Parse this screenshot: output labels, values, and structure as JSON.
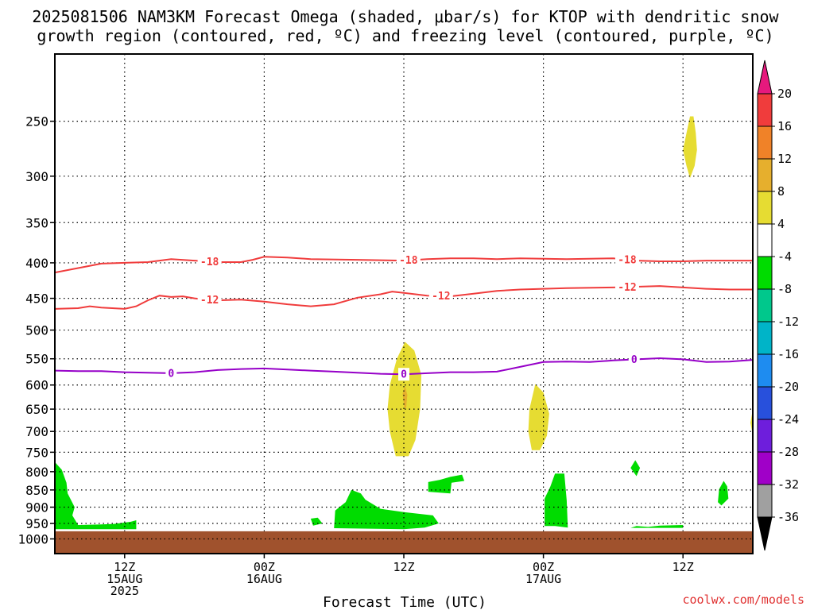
{
  "chart_data": {
    "type": "time-height cross section",
    "title_line1": "2025081506 NAM3KM Forecast Omega (shaded, μbar/s) for KTOP with dendritic snow",
    "title_line2": "growth region (contoured, red, ºC) and freezing level (contoured, purple, ºC)",
    "xlabel": "Forecast Time (UTC)",
    "credit": "coolwx.com/models",
    "y_axis": {
      "unit": "hPa",
      "scale": "log-pressure",
      "range": [
        1050,
        200
      ],
      "ticks": [
        250,
        300,
        350,
        400,
        450,
        500,
        550,
        600,
        650,
        700,
        750,
        800,
        850,
        900,
        950,
        1000
      ]
    },
    "x_axis": {
      "range_hours": [
        0,
        60
      ],
      "ticks": [
        {
          "hour": 6,
          "lines": [
            "12Z",
            "15AUG",
            "2025"
          ]
        },
        {
          "hour": 18,
          "lines": [
            "00Z",
            "16AUG"
          ]
        },
        {
          "hour": 30,
          "lines": [
            "12Z"
          ]
        },
        {
          "hour": 42,
          "lines": [
            "00Z",
            "17AUG"
          ]
        },
        {
          "hour": 54,
          "lines": [
            "12Z"
          ]
        }
      ]
    },
    "colorbar": {
      "labels": [
        "20",
        "16",
        "12",
        "8",
        "4",
        "-4",
        "-8",
        "-12",
        "-16",
        "-20",
        "-24",
        "-28",
        "-32",
        "-36"
      ],
      "levels": [
        20,
        16,
        12,
        8,
        4,
        -4,
        -8,
        -12,
        -16,
        -20,
        -24,
        -28,
        -32,
        -36
      ],
      "bands": [
        {
          "from": 20,
          "to": 16,
          "color": "#f03c3c"
        },
        {
          "from": 16,
          "to": 12,
          "color": "#f08228"
        },
        {
          "from": 12,
          "to": 8,
          "color": "#e6af2d"
        },
        {
          "from": 8,
          "to": 4,
          "color": "#e6dc32"
        },
        {
          "from": 4,
          "to": -4,
          "color": "#ffffff"
        },
        {
          "from": -4,
          "to": -8,
          "color": "#00dc00"
        },
        {
          "from": -8,
          "to": -12,
          "color": "#00c88c"
        },
        {
          "from": -12,
          "to": -16,
          "color": "#00b4c8"
        },
        {
          "from": -16,
          "to": -20,
          "color": "#1e8cf0"
        },
        {
          "from": -20,
          "to": -24,
          "color": "#2850dc"
        },
        {
          "from": -24,
          "to": -28,
          "color": "#6e1edc"
        },
        {
          "from": -28,
          "to": -32,
          "color": "#a000c8"
        },
        {
          "from": -32,
          "to": -36,
          "color": "#a0a0a0"
        }
      ],
      "over_color": "#e6197d",
      "under_color": "#000000"
    },
    "ground_color": "#a0522d",
    "ground_pressure": 975,
    "contours": [
      {
        "value": -18,
        "label": "-18",
        "color": "#f03c3c",
        "points": [
          [
            0,
            413
          ],
          [
            2,
            407
          ],
          [
            4,
            401
          ],
          [
            6,
            400
          ],
          [
            8,
            399
          ],
          [
            9,
            397
          ],
          [
            10,
            395
          ],
          [
            12,
            397
          ],
          [
            13,
            398
          ],
          [
            14,
            399
          ],
          [
            16,
            399
          ],
          [
            17,
            396
          ],
          [
            18,
            392
          ],
          [
            20,
            393
          ],
          [
            22,
            395
          ],
          [
            26,
            396
          ],
          [
            30,
            397
          ],
          [
            32,
            395
          ],
          [
            34,
            394
          ],
          [
            36,
            394
          ],
          [
            38,
            395
          ],
          [
            40,
            394
          ],
          [
            44,
            395
          ],
          [
            48,
            394
          ],
          [
            50,
            397
          ],
          [
            52,
            398
          ],
          [
            54,
            398
          ],
          [
            56,
            397
          ],
          [
            58,
            397
          ],
          [
            60,
            397
          ]
        ],
        "label_hours": [
          13.3,
          30.4,
          49.2
        ]
      },
      {
        "value": -12,
        "label": "-12",
        "color": "#f03c3c",
        "points": [
          [
            0,
            466
          ],
          [
            2,
            465
          ],
          [
            3,
            462
          ],
          [
            4,
            464
          ],
          [
            6,
            466
          ],
          [
            7,
            462
          ],
          [
            8,
            453
          ],
          [
            9,
            446
          ],
          [
            10,
            448
          ],
          [
            11,
            447
          ],
          [
            12,
            450
          ],
          [
            13,
            452
          ],
          [
            14,
            453
          ],
          [
            16,
            452
          ],
          [
            18,
            455
          ],
          [
            20,
            459
          ],
          [
            22,
            462
          ],
          [
            24,
            459
          ],
          [
            26,
            449
          ],
          [
            28,
            444
          ],
          [
            29,
            440
          ],
          [
            30,
            442
          ],
          [
            32,
            446
          ],
          [
            34,
            447
          ],
          [
            36,
            443
          ],
          [
            38,
            439
          ],
          [
            40,
            437
          ],
          [
            42,
            436
          ],
          [
            44,
            435
          ],
          [
            48,
            434
          ],
          [
            50,
            433
          ],
          [
            52,
            432
          ],
          [
            54,
            434
          ],
          [
            56,
            436
          ],
          [
            58,
            437
          ],
          [
            60,
            437
          ]
        ],
        "label_hours": [
          13.3,
          33.2,
          49.2
        ]
      },
      {
        "value": 0,
        "label": "0",
        "color": "#9600c8",
        "points": [
          [
            0,
            572
          ],
          [
            2,
            573
          ],
          [
            4,
            573
          ],
          [
            6,
            575
          ],
          [
            8,
            576
          ],
          [
            10,
            577
          ],
          [
            12,
            575
          ],
          [
            14,
            571
          ],
          [
            16,
            569
          ],
          [
            18,
            568
          ],
          [
            20,
            570
          ],
          [
            22,
            572
          ],
          [
            24,
            574
          ],
          [
            26,
            576
          ],
          [
            28,
            578
          ],
          [
            30,
            579
          ],
          [
            32,
            577
          ],
          [
            34,
            575
          ],
          [
            36,
            575
          ],
          [
            38,
            574
          ],
          [
            40,
            565
          ],
          [
            42,
            556
          ],
          [
            44,
            555
          ],
          [
            46,
            556
          ],
          [
            48,
            553
          ],
          [
            50,
            551
          ],
          [
            52,
            549
          ],
          [
            54,
            551
          ],
          [
            56,
            556
          ],
          [
            58,
            555
          ],
          [
            60,
            552
          ]
        ],
        "label_hours": [
          10.0,
          30.0,
          49.8
        ]
      }
    ],
    "shaded_regions": [
      {
        "category": "4 to 8",
        "color": "#e6dc32",
        "outline": [
          [
            54.6,
            246
          ],
          [
            54.3,
            260
          ],
          [
            54.0,
            275
          ],
          [
            54.3,
            290
          ],
          [
            54.6,
            302
          ],
          [
            55.0,
            290
          ],
          [
            55.2,
            275
          ],
          [
            55.1,
            260
          ],
          [
            54.9,
            246
          ]
        ]
      },
      {
        "category": "4 to 8",
        "color": "#e6dc32",
        "outline": [
          [
            29.3,
            760
          ],
          [
            28.8,
            700
          ],
          [
            28.6,
            650
          ],
          [
            28.8,
            600
          ],
          [
            29.4,
            550
          ],
          [
            30.1,
            520
          ],
          [
            30.9,
            535
          ],
          [
            31.5,
            580
          ],
          [
            31.4,
            650
          ],
          [
            31.0,
            720
          ],
          [
            30.4,
            760
          ]
        ]
      },
      {
        "category": "8 to 12",
        "color": "#e6af2d",
        "outline": [
          [
            30.05,
            648
          ],
          [
            29.9,
            618
          ],
          [
            30.1,
            602
          ],
          [
            30.3,
            620
          ],
          [
            30.2,
            648
          ]
        ]
      },
      {
        "category": "4 to 8",
        "color": "#e6dc32",
        "outline": [
          [
            41.0,
            745
          ],
          [
            40.7,
            700
          ],
          [
            40.8,
            650
          ],
          [
            41.3,
            598
          ],
          [
            42.0,
            615
          ],
          [
            42.5,
            660
          ],
          [
            42.3,
            710
          ],
          [
            41.7,
            745
          ]
        ]
      },
      {
        "category": "4 to 8",
        "color": "#e6dc32",
        "outline": [
          [
            60,
            650
          ],
          [
            59.8,
            680
          ],
          [
            60,
            710
          ]
        ]
      },
      {
        "category": "-4 to -8",
        "color": "#00dc00",
        "outline": [
          [
            0,
            775
          ],
          [
            0.6,
            795
          ],
          [
            1.0,
            830
          ],
          [
            1.1,
            860
          ],
          [
            1.7,
            900
          ],
          [
            1.5,
            925
          ],
          [
            2.0,
            955
          ],
          [
            5.0,
            952
          ],
          [
            6.5,
            945
          ],
          [
            7.0,
            940
          ],
          [
            7.0,
            968
          ],
          [
            0,
            968
          ]
        ]
      },
      {
        "category": "-4 to -8",
        "color": "#00dc00",
        "outline": [
          [
            22.0,
            935
          ],
          [
            22.6,
            932
          ],
          [
            23.0,
            950
          ],
          [
            22.2,
            957
          ]
        ]
      },
      {
        "category": "-4 to -8",
        "color": "#00dc00",
        "outline": [
          [
            24.0,
            965
          ],
          [
            24.1,
            910
          ],
          [
            25.0,
            885
          ],
          [
            25.5,
            850
          ],
          [
            26.3,
            860
          ],
          [
            26.7,
            878
          ],
          [
            28.0,
            905
          ],
          [
            30.0,
            915
          ],
          [
            32.5,
            925
          ],
          [
            33.0,
            950
          ],
          [
            31.8,
            963
          ],
          [
            30.0,
            968
          ]
        ]
      },
      {
        "category": "-4 to -8",
        "color": "#00dc00",
        "outline": [
          [
            32.1,
            855
          ],
          [
            32.1,
            828
          ],
          [
            33.1,
            822
          ],
          [
            34.0,
            814
          ],
          [
            35.0,
            808
          ],
          [
            35.2,
            825
          ],
          [
            34.1,
            830
          ],
          [
            34.0,
            860
          ]
        ]
      },
      {
        "category": "-4 to -8",
        "color": "#00dc00",
        "outline": [
          [
            42.1,
            958
          ],
          [
            42.1,
            875
          ],
          [
            42.6,
            840
          ],
          [
            43.0,
            805
          ],
          [
            43.8,
            805
          ],
          [
            44.0,
            880
          ],
          [
            44.1,
            963
          ],
          [
            43.0,
            958
          ]
        ]
      },
      {
        "category": "-4 to -8",
        "color": "#00dc00",
        "outline": [
          [
            49.5,
            790
          ],
          [
            49.9,
            770
          ],
          [
            50.3,
            790
          ],
          [
            50.0,
            812
          ]
        ]
      },
      {
        "category": "-4 to -8",
        "color": "#00dc00",
        "outline": [
          [
            49.5,
            964
          ],
          [
            50.0,
            958
          ],
          [
            51.0,
            961
          ],
          [
            52.0,
            957
          ],
          [
            54.0,
            955
          ],
          [
            54.0,
            964
          ]
        ]
      },
      {
        "category": "-4 to -8",
        "color": "#00dc00",
        "outline": [
          [
            57.0,
            885
          ],
          [
            57.1,
            848
          ],
          [
            57.5,
            825
          ],
          [
            57.8,
            840
          ],
          [
            57.9,
            875
          ],
          [
            57.3,
            895
          ]
        ]
      }
    ],
    "grid": "dotted horizontal lines at pressure ticks, dotted vertical lines at time ticks"
  }
}
